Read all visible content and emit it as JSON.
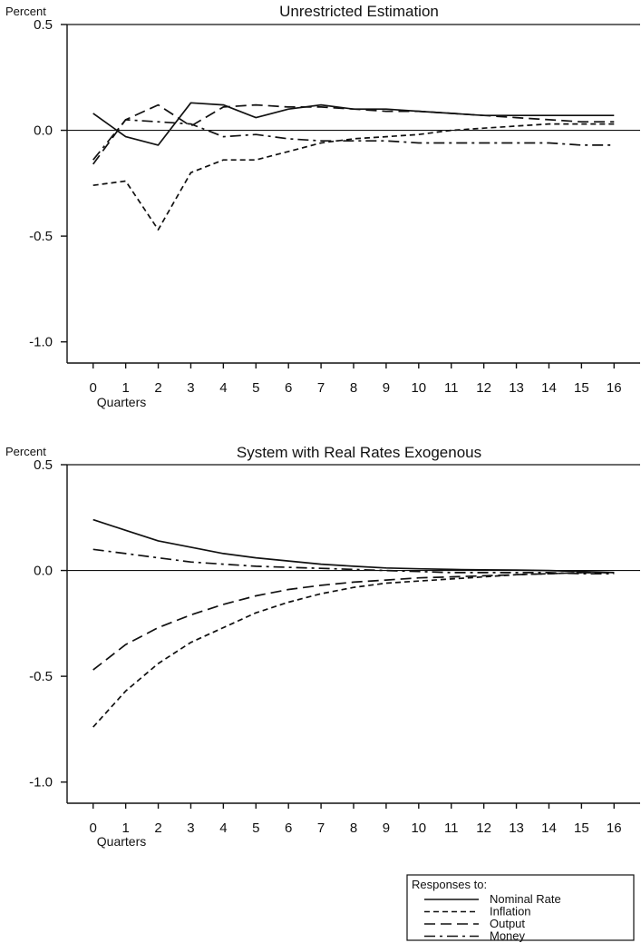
{
  "chart_data": [
    {
      "type": "line",
      "title": "Unrestricted Estimation",
      "ylabel": "Percent",
      "xlabel": "Quarters",
      "x": [
        0,
        1,
        2,
        3,
        4,
        5,
        6,
        7,
        8,
        9,
        10,
        11,
        12,
        13,
        14,
        15,
        16
      ],
      "ylim": [
        -1.1,
        0.5
      ],
      "xlim": [
        -0.8,
        16.8
      ],
      "yticks": [
        0.5,
        0.0,
        -0.5,
        -1.0
      ],
      "yticklabels": [
        "0.5",
        "0.0",
        "-0.5",
        "-1.0"
      ],
      "xticks": [
        0,
        1,
        2,
        3,
        4,
        5,
        6,
        7,
        8,
        9,
        10,
        11,
        12,
        13,
        14,
        15,
        16
      ],
      "xticklabels": [
        "0",
        "1",
        "2",
        "3",
        "4",
        "5",
        "6",
        "7",
        "8",
        "9",
        "10",
        "11",
        "12",
        "13",
        "14",
        "15",
        "16"
      ],
      "grid": false,
      "series": [
        {
          "name": "Nominal Rate",
          "values": [
            0.08,
            -0.03,
            -0.07,
            0.13,
            0.12,
            0.06,
            0.1,
            0.12,
            0.1,
            0.1,
            0.09,
            0.08,
            0.07,
            0.07,
            0.07,
            0.07,
            0.07
          ]
        },
        {
          "name": "Inflation",
          "values": [
            -0.26,
            -0.24,
            -0.47,
            -0.2,
            -0.14,
            -0.14,
            -0.1,
            -0.06,
            -0.04,
            -0.03,
            -0.02,
            0.0,
            0.01,
            0.02,
            0.03,
            0.03,
            0.03
          ]
        },
        {
          "name": "Output",
          "values": [
            -0.16,
            0.05,
            0.12,
            0.02,
            0.11,
            0.12,
            0.11,
            0.11,
            0.1,
            0.09,
            0.09,
            0.08,
            0.07,
            0.06,
            0.05,
            0.04,
            0.04
          ]
        },
        {
          "name": "Money",
          "values": [
            -0.14,
            0.05,
            0.04,
            0.03,
            -0.03,
            -0.02,
            -0.04,
            -0.05,
            -0.05,
            -0.05,
            -0.06,
            -0.06,
            -0.06,
            -0.06,
            -0.06,
            -0.07,
            -0.07
          ]
        }
      ]
    },
    {
      "type": "line",
      "title": "System with Real Rates Exogenous",
      "ylabel": "Percent",
      "xlabel": "Quarters",
      "x": [
        0,
        1,
        2,
        3,
        4,
        5,
        6,
        7,
        8,
        9,
        10,
        11,
        12,
        13,
        14,
        15,
        16
      ],
      "ylim": [
        -1.1,
        0.5
      ],
      "xlim": [
        -0.8,
        16.8
      ],
      "yticks": [
        0.5,
        0.0,
        -0.5,
        -1.0
      ],
      "yticklabels": [
        "0.5",
        "0.0",
        "-0.5",
        "-1.0"
      ],
      "xticks": [
        0,
        1,
        2,
        3,
        4,
        5,
        6,
        7,
        8,
        9,
        10,
        11,
        12,
        13,
        14,
        15,
        16
      ],
      "xticklabels": [
        "0",
        "1",
        "2",
        "3",
        "4",
        "5",
        "6",
        "7",
        "8",
        "9",
        "10",
        "11",
        "12",
        "13",
        "14",
        "15",
        "16"
      ],
      "grid": false,
      "series": [
        {
          "name": "Nominal Rate",
          "values": [
            0.24,
            0.19,
            0.14,
            0.11,
            0.08,
            0.06,
            0.045,
            0.03,
            0.02,
            0.012,
            0.008,
            0.005,
            0.003,
            0.002,
            0.0,
            -0.005,
            -0.01
          ]
        },
        {
          "name": "Inflation",
          "values": [
            -0.74,
            -0.57,
            -0.44,
            -0.34,
            -0.27,
            -0.2,
            -0.15,
            -0.11,
            -0.08,
            -0.06,
            -0.05,
            -0.04,
            -0.03,
            -0.02,
            -0.015,
            -0.01,
            -0.01
          ]
        },
        {
          "name": "Output",
          "values": [
            -0.47,
            -0.35,
            -0.27,
            -0.21,
            -0.16,
            -0.12,
            -0.09,
            -0.07,
            -0.055,
            -0.045,
            -0.035,
            -0.03,
            -0.025,
            -0.02,
            -0.015,
            -0.01,
            -0.01
          ]
        },
        {
          "name": "Money",
          "values": [
            0.1,
            0.08,
            0.06,
            0.04,
            0.03,
            0.02,
            0.015,
            0.01,
            0.005,
            0.0,
            -0.005,
            -0.01,
            -0.01,
            -0.01,
            -0.01,
            -0.015,
            -0.015
          ]
        }
      ]
    }
  ],
  "legend": {
    "title": "Responses to:",
    "position": "bottom-right",
    "items": [
      {
        "name": "Nominal Rate",
        "style": "solid"
      },
      {
        "name": "Inflation",
        "style": "short-dash"
      },
      {
        "name": "Output",
        "style": "long-dash"
      },
      {
        "name": "Money",
        "style": "dash-dot"
      }
    ]
  },
  "colors": {
    "line": "#111111",
    "background": "#ffffff"
  }
}
